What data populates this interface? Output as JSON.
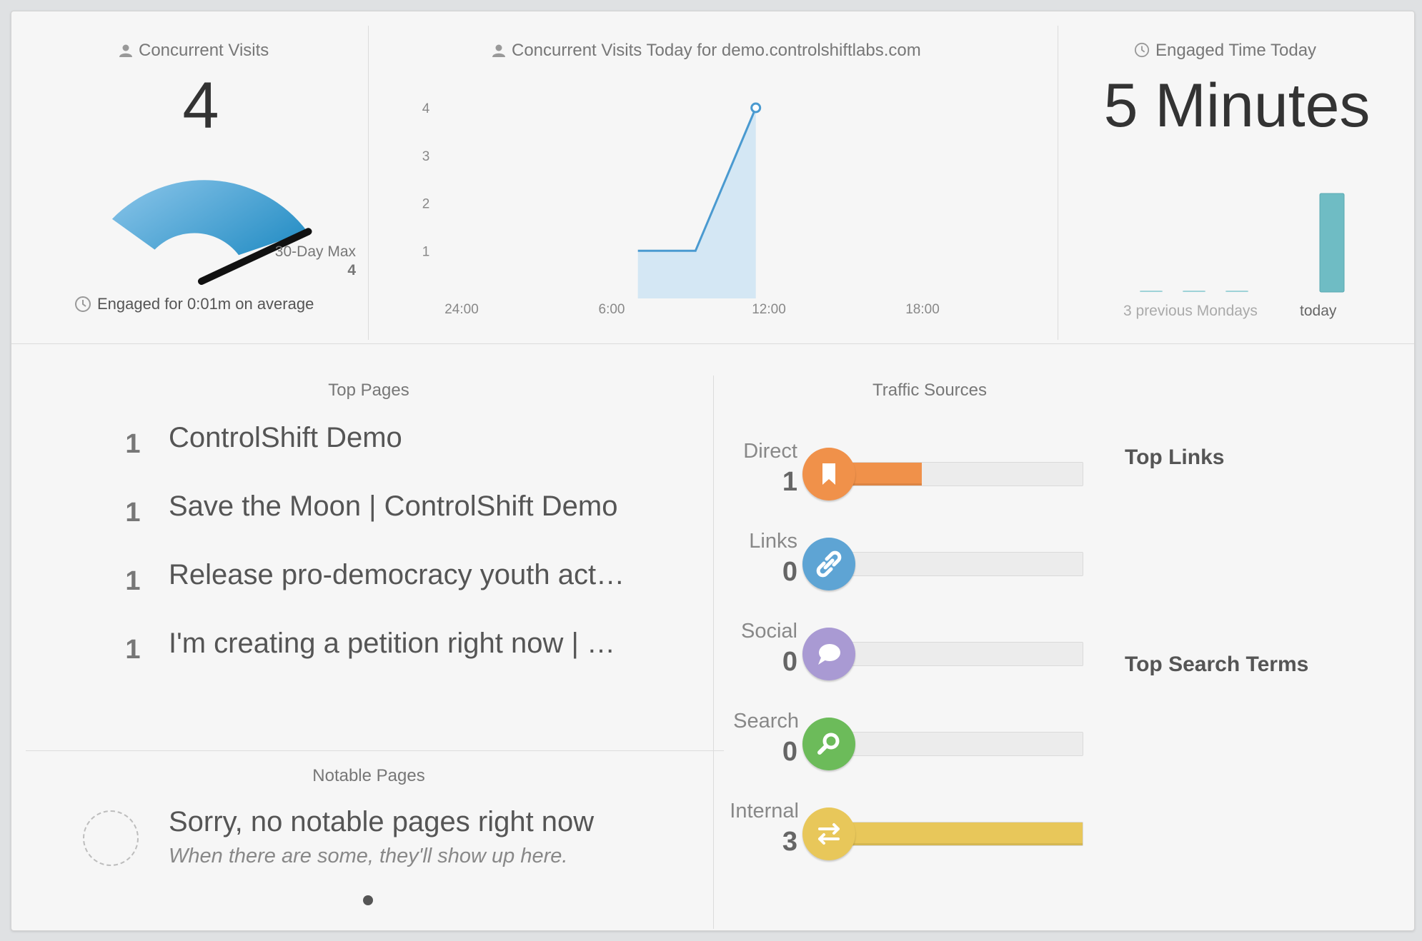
{
  "concurrent": {
    "title": "Concurrent Visits",
    "value": "4",
    "max_label": "30-Day Max",
    "max_value": "4",
    "engaged_text": "Engaged for 0:01m on average",
    "gauge_level": 1.0
  },
  "today_chart": {
    "title": "Concurrent Visits Today for demo.controlshiftlabs.com",
    "chart_data": {
      "type": "area",
      "x_ticks": [
        "24:00",
        "6:00",
        "12:00",
        "18:00"
      ],
      "y_ticks": [
        "1",
        "2",
        "3",
        "4"
      ],
      "ylim": [
        0,
        4
      ],
      "xlim_hours": [
        0,
        24
      ],
      "series": [
        {
          "x_hours": [
            7,
            9.2,
            11.5
          ],
          "values": [
            1,
            1,
            4
          ]
        }
      ]
    }
  },
  "engaged_time": {
    "title": "Engaged Time Today",
    "value": "5 Minutes",
    "prev_label": "3 previous Mondays",
    "today_label": "today",
    "chart_data": {
      "type": "bar",
      "categories": [
        "prev1",
        "prev2",
        "prev3",
        "today"
      ],
      "values": [
        0,
        0,
        0,
        5
      ]
    }
  },
  "top_pages": {
    "title": "Top Pages",
    "items": [
      {
        "rank": "1",
        "title": "ControlShift Demo"
      },
      {
        "rank": "1",
        "title": "Save the Moon | ControlShift Demo"
      },
      {
        "rank": "1",
        "title": "Release pro-democracy youth act…"
      },
      {
        "rank": "1",
        "title": "I'm creating a petition right now | …"
      }
    ]
  },
  "notable_pages": {
    "title": "Notable Pages",
    "message": "Sorry, no notable pages right now",
    "sub_message": "When there are some, they'll show up here."
  },
  "traffic_sources": {
    "title": "Traffic Sources",
    "max": 3,
    "items": [
      {
        "label": "Direct",
        "count": "1",
        "value": 1,
        "color": "#f0914a",
        "icon": "bookmark-icon"
      },
      {
        "label": "Links",
        "count": "0",
        "value": 0,
        "color": "#5ea4d4",
        "icon": "link-icon"
      },
      {
        "label": "Social",
        "count": "0",
        "value": 0,
        "color": "#a99ad3",
        "icon": "speech-bubble-icon"
      },
      {
        "label": "Search",
        "count": "0",
        "value": 0,
        "color": "#6cbb5a",
        "icon": "magnifier-icon"
      },
      {
        "label": "Internal",
        "count": "3",
        "value": 3,
        "color": "#e8c75a",
        "icon": "swap-arrows-icon"
      }
    ]
  },
  "top_links": {
    "title": "Top Links"
  },
  "top_search_terms": {
    "title": "Top Search Terms"
  }
}
